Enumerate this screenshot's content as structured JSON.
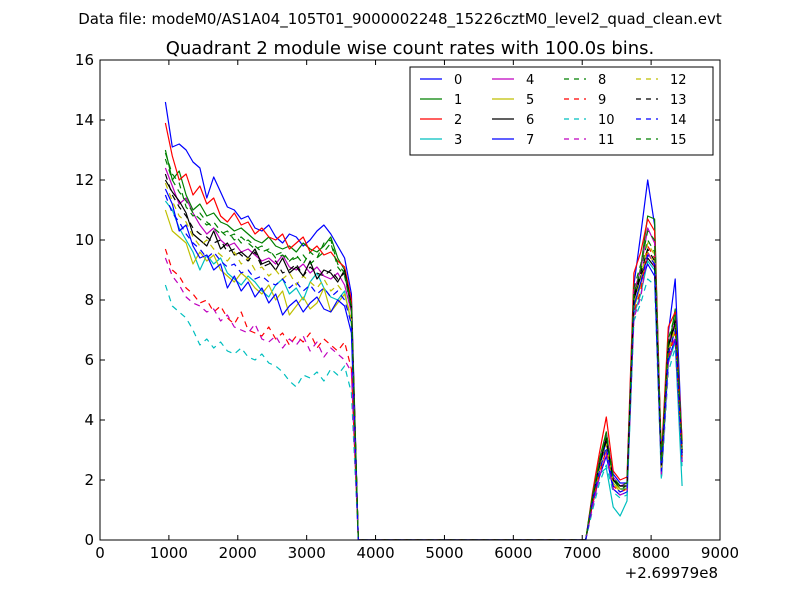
{
  "figure": {
    "suptitle": "Data file: modeM0/AS1A04_105T01_9000002248_15226cztM0_level2_quad_clean.evt",
    "title": "Quadrant 2 module wise count rates with 100.0s bins.",
    "x_offset_label": "+2.69979e8"
  },
  "chart_data": {
    "type": "line",
    "title": "Quadrant 2 module wise count rates with 100.0s bins.",
    "xlabel": "",
    "ylabel": "",
    "x_offset": 269979000,
    "xlim": [
      0,
      9000
    ],
    "ylim": [
      0,
      16
    ],
    "xticks": [
      0,
      1000,
      2000,
      3000,
      4000,
      5000,
      6000,
      7000,
      8000,
      9000
    ],
    "yticks": [
      0,
      2,
      4,
      6,
      8,
      10,
      12,
      14,
      16
    ],
    "grid": false,
    "legend_position": "top-right",
    "x": [
      950,
      1050,
      1150,
      1250,
      1350,
      1450,
      1550,
      1650,
      1750,
      1850,
      1950,
      2050,
      2150,
      2250,
      2350,
      2450,
      2550,
      2650,
      2750,
      2850,
      2950,
      3050,
      3150,
      3250,
      3350,
      3450,
      3550,
      3650,
      3750,
      3850,
      7050,
      7150,
      7250,
      7350,
      7450,
      7550,
      7650,
      7750,
      7850,
      7950,
      8050,
      8150,
      8250,
      8350,
      8450
    ],
    "series": [
      {
        "name": "0",
        "color": "#0000ff",
        "dash": "solid",
        "values": [
          14.6,
          13.1,
          13.2,
          13.0,
          12.6,
          12.4,
          11.4,
          12.1,
          11.6,
          11.1,
          11.0,
          10.7,
          10.8,
          10.4,
          10.3,
          10.5,
          10.1,
          9.9,
          10.2,
          10.1,
          9.8,
          10.0,
          10.3,
          10.5,
          10.2,
          9.8,
          9.4,
          8.2,
          0,
          0,
          0,
          1.3,
          2.4,
          3.3,
          2.2,
          1.9,
          1.9,
          8.5,
          10.2,
          12.0,
          10.5,
          2.4,
          6.9,
          8.7,
          3.2
        ]
      },
      {
        "name": "1",
        "color": "#008000",
        "dash": "solid",
        "values": [
          13.0,
          12.0,
          12.3,
          11.5,
          11.0,
          11.2,
          10.8,
          10.9,
          10.6,
          10.5,
          10.3,
          10.4,
          10.2,
          10.0,
          9.9,
          10.1,
          9.8,
          9.7,
          9.8,
          9.6,
          9.9,
          9.7,
          9.6,
          9.8,
          10.1,
          9.4,
          9.0,
          7.9,
          0,
          0,
          0,
          1.5,
          2.7,
          3.6,
          2.0,
          1.7,
          1.7,
          8.1,
          9.1,
          10.8,
          10.7,
          2.6,
          6.3,
          7.7,
          3.0
        ]
      },
      {
        "name": "2",
        "color": "#ff0000",
        "dash": "solid",
        "values": [
          13.9,
          12.8,
          12.0,
          12.2,
          11.5,
          11.8,
          11.2,
          11.4,
          10.8,
          10.6,
          10.9,
          10.5,
          10.6,
          10.2,
          10.4,
          10.1,
          10.0,
          10.2,
          9.7,
          9.9,
          10.1,
          9.6,
          9.8,
          9.5,
          9.6,
          9.3,
          9.1,
          8.0,
          0,
          0,
          0,
          1.6,
          2.9,
          4.1,
          2.3,
          2.0,
          2.1,
          8.9,
          9.6,
          10.7,
          10.3,
          2.8,
          7.1,
          7.6,
          3.3
        ]
      },
      {
        "name": "3",
        "color": "#00bfbf",
        "dash": "solid",
        "values": [
          11.3,
          11.0,
          10.4,
          10.0,
          9.6,
          9.0,
          9.5,
          9.2,
          9.4,
          8.9,
          8.7,
          8.5,
          8.8,
          8.6,
          8.3,
          8.1,
          8.5,
          8.7,
          8.2,
          8.4,
          8.0,
          8.6,
          8.9,
          8.4,
          8.1,
          8.0,
          8.3,
          7.2,
          0,
          0,
          0,
          1.2,
          2.2,
          2.4,
          1.1,
          0.8,
          1.3,
          7.5,
          8.2,
          9.3,
          9.0,
          2.1,
          5.9,
          6.6,
          1.8
        ]
      },
      {
        "name": "4",
        "color": "#bf00bf",
        "dash": "solid",
        "values": [
          12.4,
          11.8,
          11.2,
          11.4,
          10.9,
          10.5,
          10.2,
          10.4,
          10.0,
          9.8,
          9.9,
          9.6,
          9.7,
          9.5,
          9.3,
          9.4,
          9.2,
          9.5,
          9.1,
          9.0,
          9.2,
          8.9,
          9.1,
          8.8,
          8.7,
          8.9,
          8.5,
          7.6,
          0,
          0,
          0,
          1.4,
          2.6,
          3.5,
          2.1,
          1.8,
          1.9,
          8.3,
          9.0,
          10.4,
          9.9,
          2.5,
          6.5,
          7.3,
          2.9
        ]
      },
      {
        "name": "5",
        "color": "#bfbf00",
        "dash": "solid",
        "values": [
          11.0,
          10.3,
          10.1,
          9.9,
          9.2,
          9.6,
          9.3,
          9.5,
          9.0,
          8.8,
          8.6,
          8.9,
          8.7,
          8.4,
          8.2,
          8.5,
          8.0,
          8.3,
          7.5,
          7.8,
          8.1,
          7.7,
          7.9,
          8.4,
          7.6,
          7.9,
          8.2,
          7.3,
          0,
          0,
          0,
          1.3,
          2.3,
          3.0,
          1.9,
          1.6,
          1.7,
          7.7,
          8.5,
          9.6,
          9.2,
          2.3,
          6.2,
          7.0,
          2.7
        ]
      },
      {
        "name": "6",
        "color": "#000000",
        "dash": "solid",
        "values": [
          12.0,
          11.6,
          11.3,
          10.9,
          10.2,
          10.0,
          9.8,
          10.3,
          9.7,
          9.9,
          9.5,
          9.6,
          9.4,
          9.7,
          9.2,
          9.3,
          9.0,
          9.4,
          8.9,
          9.1,
          8.8,
          9.3,
          8.7,
          9.0,
          8.9,
          8.6,
          9.0,
          7.8,
          0,
          0,
          0,
          1.4,
          2.5,
          3.4,
          2.0,
          1.8,
          1.8,
          8.0,
          8.8,
          9.4,
          9.1,
          2.5,
          6.4,
          7.2,
          2.8
        ]
      },
      {
        "name": "7",
        "color": "#0000ff",
        "dash": "solid",
        "values": [
          11.7,
          11.2,
          10.3,
          10.5,
          9.8,
          9.4,
          9.5,
          9.0,
          9.2,
          8.4,
          8.8,
          8.3,
          8.6,
          8.1,
          8.4,
          7.9,
          8.2,
          7.5,
          7.8,
          8.0,
          7.6,
          7.9,
          8.1,
          7.7,
          7.6,
          8.0,
          7.8,
          6.9,
          0,
          0,
          0,
          1.2,
          2.1,
          2.8,
          1.7,
          1.5,
          1.6,
          7.8,
          8.6,
          9.2,
          8.8,
          2.2,
          6.0,
          6.7,
          2.6
        ]
      },
      {
        "name": "8",
        "color": "#008000",
        "dash": "dashed",
        "values": [
          12.9,
          12.2,
          11.9,
          11.1,
          10.8,
          10.9,
          10.6,
          10.4,
          10.2,
          10.3,
          10.0,
          10.1,
          9.9,
          9.7,
          9.8,
          9.6,
          9.5,
          9.6,
          9.3,
          9.4,
          9.5,
          9.2,
          9.4,
          9.6,
          9.9,
          9.1,
          8.8,
          7.7,
          0,
          0,
          0,
          1.5,
          2.6,
          3.5,
          2.0,
          1.7,
          1.8,
          8.2,
          9.0,
          10.0,
          9.6,
          2.6,
          6.6,
          7.4,
          3.0
        ]
      },
      {
        "name": "9",
        "color": "#ff0000",
        "dash": "dashed",
        "values": [
          9.7,
          9.0,
          8.8,
          8.4,
          8.2,
          7.9,
          8.0,
          7.6,
          7.8,
          7.4,
          7.2,
          7.6,
          7.0,
          6.9,
          6.8,
          7.1,
          6.7,
          6.9,
          6.5,
          6.8,
          6.6,
          6.9,
          6.4,
          6.7,
          6.5,
          6.3,
          6.6,
          5.7,
          0,
          0,
          0,
          1.2,
          2.2,
          3.0,
          1.8,
          1.6,
          1.7,
          7.6,
          8.3,
          9.8,
          9.4,
          2.3,
          6.1,
          6.9,
          2.7
        ]
      },
      {
        "name": "10",
        "color": "#00bfbf",
        "dash": "dashed",
        "values": [
          8.5,
          7.8,
          7.6,
          7.4,
          7.0,
          6.5,
          6.7,
          6.4,
          6.6,
          6.3,
          6.2,
          6.4,
          6.1,
          6.0,
          6.2,
          5.9,
          5.8,
          5.6,
          5.3,
          5.1,
          5.5,
          5.4,
          5.6,
          5.3,
          5.7,
          5.5,
          5.8,
          4.9,
          0,
          0,
          0,
          1.0,
          1.9,
          2.5,
          1.6,
          1.4,
          1.5,
          7.3,
          7.9,
          8.7,
          8.5,
          2.0,
          5.6,
          6.4,
          2.4
        ]
      },
      {
        "name": "11",
        "color": "#bf00bf",
        "dash": "dashed",
        "values": [
          9.4,
          8.8,
          8.5,
          8.1,
          7.9,
          7.8,
          7.6,
          7.7,
          7.3,
          7.5,
          7.1,
          7.0,
          6.9,
          7.2,
          6.7,
          6.6,
          6.8,
          6.4,
          6.7,
          6.5,
          6.8,
          6.3,
          6.6,
          6.1,
          6.4,
          6.2,
          6.0,
          5.6,
          0,
          0,
          0,
          1.1,
          2.1,
          2.9,
          1.7,
          1.5,
          1.6,
          7.4,
          8.1,
          9.6,
          9.1,
          2.2,
          5.9,
          6.8,
          2.6
        ]
      },
      {
        "name": "12",
        "color": "#bfbf00",
        "dash": "dashed",
        "values": [
          11.9,
          11.3,
          10.8,
          10.6,
          10.1,
          9.8,
          10.0,
          9.7,
          9.5,
          9.3,
          9.6,
          9.2,
          9.4,
          9.0,
          9.1,
          8.8,
          9.0,
          8.7,
          8.9,
          8.5,
          8.8,
          8.6,
          8.4,
          8.7,
          8.3,
          8.5,
          8.2,
          7.4,
          0,
          0,
          0,
          1.3,
          2.4,
          3.2,
          1.9,
          1.7,
          1.8,
          7.9,
          8.7,
          9.9,
          9.5,
          2.4,
          6.3,
          7.1,
          2.8
        ]
      },
      {
        "name": "13",
        "color": "#000000",
        "dash": "dashed",
        "values": [
          12.2,
          11.5,
          11.1,
          10.8,
          10.4,
          10.2,
          10.1,
          9.9,
          10.0,
          9.6,
          9.7,
          9.5,
          9.3,
          9.6,
          9.1,
          9.2,
          9.3,
          8.9,
          9.0,
          9.2,
          8.8,
          9.1,
          8.9,
          8.8,
          9.0,
          8.7,
          8.9,
          7.7,
          0,
          0,
          0,
          1.4,
          2.5,
          3.3,
          2.0,
          1.8,
          1.8,
          8.1,
          8.9,
          9.7,
          9.3,
          2.5,
          6.5,
          7.3,
          2.9
        ]
      },
      {
        "name": "14",
        "color": "#0000ff",
        "dash": "dashed",
        "values": [
          11.5,
          10.9,
          10.6,
          10.2,
          9.9,
          9.7,
          9.4,
          9.6,
          9.3,
          9.1,
          9.2,
          8.9,
          9.0,
          8.7,
          8.8,
          8.6,
          8.5,
          8.7,
          8.4,
          8.6,
          8.3,
          8.5,
          8.2,
          8.4,
          8.1,
          8.3,
          8.0,
          7.2,
          0,
          0,
          0,
          1.3,
          2.3,
          3.1,
          1.8,
          1.6,
          1.7,
          7.8,
          8.6,
          9.5,
          9.2,
          2.3,
          6.2,
          7.0,
          2.7
        ]
      },
      {
        "name": "15",
        "color": "#008000",
        "dash": "dashed",
        "values": [
          12.7,
          12.0,
          11.6,
          11.3,
          10.9,
          10.7,
          10.5,
          10.6,
          10.3,
          10.1,
          10.2,
          9.9,
          10.0,
          9.8,
          9.6,
          9.7,
          9.4,
          9.5,
          9.3,
          9.5,
          9.2,
          9.6,
          9.4,
          9.9,
          10.0,
          9.2,
          8.9,
          7.8,
          0,
          0,
          0,
          1.5,
          2.6,
          3.6,
          2.1,
          1.8,
          1.9,
          8.4,
          9.2,
          10.3,
          10.0,
          2.6,
          6.7,
          7.5,
          3.1
        ]
      }
    ]
  }
}
